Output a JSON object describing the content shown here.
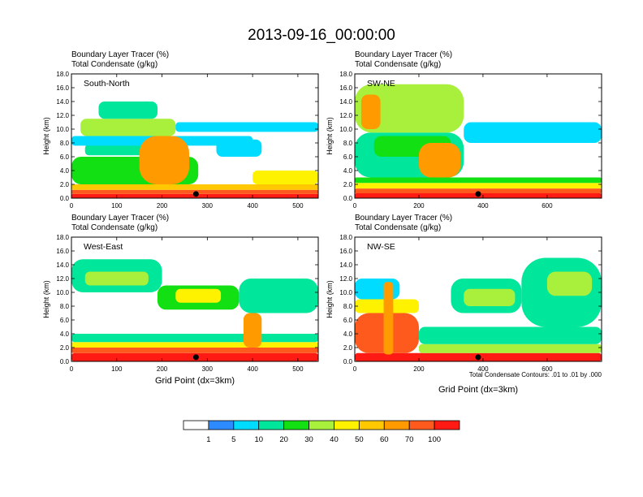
{
  "chart_data": {
    "type": "contour",
    "title": "2013-09-16_00:00:00",
    "field_label": "Boundary Layer Tracer   (%)",
    "contour_label": "Total Condensate   (g/kg)",
    "ylabel": "Height (km)",
    "xlabel": "Grid Point (dx=3km)",
    "contour_note": "Total Condensate Contours: .01 to .01 by .000",
    "ylim": [
      0,
      18
    ],
    "yticks": [
      "0.0",
      "2.0",
      "4.0",
      "6.0",
      "8.0",
      "10.0",
      "12.0",
      "14.0",
      "16.0",
      "18.0"
    ],
    "panels": [
      {
        "name": "South-North",
        "xlim": [
          0,
          545
        ],
        "xticks": [
          0,
          100,
          200,
          300,
          400,
          500
        ],
        "marker_x": 275,
        "bands": [
          {
            "x0": 0,
            "x1": 545,
            "y0": 0,
            "y1": 0.6,
            "level": 100
          },
          {
            "x0": 0,
            "x1": 545,
            "y0": 0.6,
            "y1": 1.2,
            "level": 70
          },
          {
            "x0": 0,
            "x1": 545,
            "y0": 1.2,
            "y1": 2.0,
            "level": 50
          },
          {
            "x0": 0,
            "x1": 280,
            "y0": 2.0,
            "y1": 6.0,
            "level": 20
          },
          {
            "x0": 30,
            "x1": 250,
            "y0": 6.2,
            "y1": 7.8,
            "level": 10
          },
          {
            "x0": 0,
            "x1": 400,
            "y0": 7.6,
            "y1": 9.0,
            "level": 5
          },
          {
            "x0": 20,
            "x1": 230,
            "y0": 9.0,
            "y1": 11.5,
            "level": 30
          },
          {
            "x0": 230,
            "x1": 545,
            "y0": 9.6,
            "y1": 11.0,
            "level": 5
          },
          {
            "x0": 60,
            "x1": 190,
            "y0": 11.5,
            "y1": 14.0,
            "level": 10
          },
          {
            "x0": 150,
            "x1": 260,
            "y0": 2.0,
            "y1": 9.0,
            "level": 60
          },
          {
            "x0": 400,
            "x1": 545,
            "y0": 2.0,
            "y1": 4.0,
            "level": 40
          },
          {
            "x0": 320,
            "x1": 420,
            "y0": 6.0,
            "y1": 8.5,
            "level": 5
          }
        ]
      },
      {
        "name": "SW-NE",
        "xlim": [
          0,
          770
        ],
        "xticks": [
          0,
          200,
          400,
          600
        ],
        "marker_x": 385,
        "bands": [
          {
            "x0": 0,
            "x1": 770,
            "y0": 0,
            "y1": 0.7,
            "level": 100
          },
          {
            "x0": 0,
            "x1": 770,
            "y0": 0.7,
            "y1": 1.4,
            "level": 70
          },
          {
            "x0": 0,
            "x1": 770,
            "y0": 1.4,
            "y1": 2.2,
            "level": 40
          },
          {
            "x0": 0,
            "x1": 770,
            "y0": 2.2,
            "y1": 3.0,
            "level": 20
          },
          {
            "x0": 0,
            "x1": 340,
            "y0": 3.0,
            "y1": 9.5,
            "level": 10
          },
          {
            "x0": 0,
            "x1": 340,
            "y0": 9.5,
            "y1": 16.5,
            "level": 30
          },
          {
            "x0": 340,
            "x1": 770,
            "y0": 8.0,
            "y1": 11.0,
            "level": 5
          },
          {
            "x0": 60,
            "x1": 300,
            "y0": 6.0,
            "y1": 9.0,
            "level": 20
          },
          {
            "x0": 200,
            "x1": 330,
            "y0": 3.0,
            "y1": 8.0,
            "level": 60
          },
          {
            "x0": 20,
            "x1": 80,
            "y0": 10.0,
            "y1": 15.0,
            "level": 60
          }
        ]
      },
      {
        "name": "West-East",
        "xlim": [
          0,
          545
        ],
        "xticks": [
          0,
          100,
          200,
          300,
          400,
          500
        ],
        "marker_x": 275,
        "bands": [
          {
            "x0": 0,
            "x1": 545,
            "y0": 0,
            "y1": 1.2,
            "level": 100
          },
          {
            "x0": 0,
            "x1": 545,
            "y0": 1.2,
            "y1": 2.0,
            "level": 70
          },
          {
            "x0": 0,
            "x1": 545,
            "y0": 2.0,
            "y1": 2.8,
            "level": 40
          },
          {
            "x0": 0,
            "x1": 545,
            "y0": 2.8,
            "y1": 4.0,
            "level": 10
          },
          {
            "x0": 0,
            "x1": 200,
            "y0": 10.0,
            "y1": 14.8,
            "level": 10
          },
          {
            "x0": 30,
            "x1": 170,
            "y0": 11.0,
            "y1": 13.0,
            "level": 30
          },
          {
            "x0": 190,
            "x1": 370,
            "y0": 7.5,
            "y1": 11.0,
            "level": 20
          },
          {
            "x0": 230,
            "x1": 330,
            "y0": 8.5,
            "y1": 10.5,
            "level": 40
          },
          {
            "x0": 370,
            "x1": 545,
            "y0": 7.0,
            "y1": 12.0,
            "level": 10
          },
          {
            "x0": 380,
            "x1": 420,
            "y0": 2.0,
            "y1": 7.0,
            "level": 60
          }
        ]
      },
      {
        "name": "NW-SE",
        "xlim": [
          0,
          770
        ],
        "xticks": [
          0,
          200,
          400,
          600
        ],
        "marker_x": 385,
        "bands": [
          {
            "x0": 0,
            "x1": 770,
            "y0": 0,
            "y1": 1.2,
            "level": 100
          },
          {
            "x0": 0,
            "x1": 200,
            "y0": 1.2,
            "y1": 7.0,
            "level": 70
          },
          {
            "x0": 0,
            "x1": 200,
            "y0": 7.0,
            "y1": 9.0,
            "level": 40
          },
          {
            "x0": 200,
            "x1": 770,
            "y0": 1.2,
            "y1": 2.5,
            "level": 30
          },
          {
            "x0": 200,
            "x1": 770,
            "y0": 2.5,
            "y1": 5.0,
            "level": 10
          },
          {
            "x0": 0,
            "x1": 140,
            "y0": 9.0,
            "y1": 12.0,
            "level": 5
          },
          {
            "x0": 300,
            "x1": 520,
            "y0": 7.0,
            "y1": 12.0,
            "level": 10
          },
          {
            "x0": 340,
            "x1": 500,
            "y0": 8.0,
            "y1": 10.5,
            "level": 30
          },
          {
            "x0": 520,
            "x1": 770,
            "y0": 5.0,
            "y1": 15.0,
            "level": 10
          },
          {
            "x0": 600,
            "x1": 740,
            "y0": 9.5,
            "y1": 13.0,
            "level": 30
          },
          {
            "x0": 90,
            "x1": 120,
            "y0": 1.0,
            "y1": 11.5,
            "level": 60
          }
        ]
      }
    ],
    "colorbar": {
      "levels": [
        1,
        5,
        10,
        20,
        30,
        40,
        50,
        60,
        70,
        100
      ],
      "colors": [
        "#ffffff",
        "#2e8bff",
        "#00dcff",
        "#00e69b",
        "#13e013",
        "#a8f03c",
        "#fff200",
        "#ffc800",
        "#ff9a00",
        "#ff5a1e",
        "#ff1a14"
      ]
    }
  }
}
